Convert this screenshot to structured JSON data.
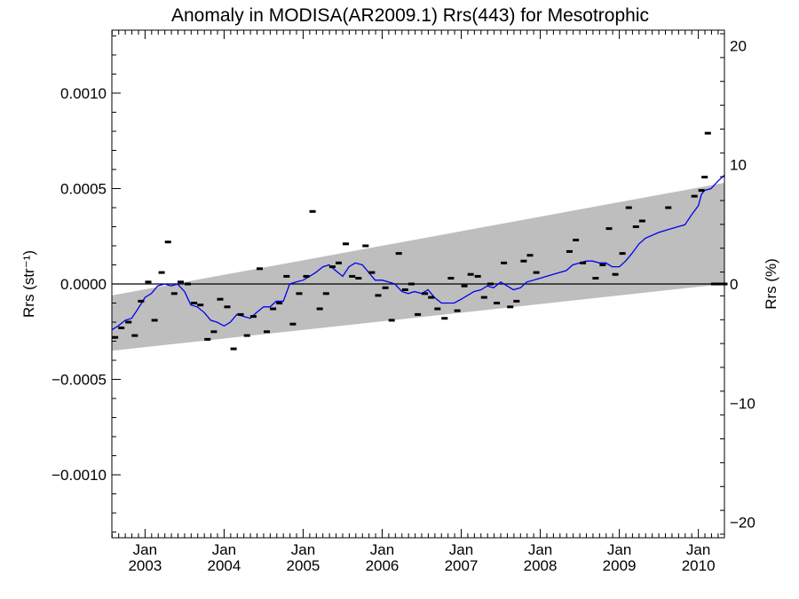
{
  "chart_data": {
    "type": "line",
    "title": "Anomaly in MODISA(AR2009.1) Rrs(443) for Mesotrophic",
    "ylabel_left": "Rrs (str⁻¹)",
    "ylabel_right": "Rrs (%)",
    "xlim": [
      2002.58,
      2010.33
    ],
    "ylim_left": [
      -0.00133,
      0.00133
    ],
    "ylim_right": [
      -21.3,
      21.3
    ],
    "yticks_left": [
      {
        "value": 0.001,
        "label": "0.0010"
      },
      {
        "value": 0.0005,
        "label": "0.0005"
      },
      {
        "value": 0.0,
        "label": "0.0000"
      },
      {
        "value": -0.0005,
        "label": "−0.0005"
      },
      {
        "value": -0.001,
        "label": "−0.0010"
      }
    ],
    "yticks_right": [
      {
        "value": 20,
        "label": "20"
      },
      {
        "value": 10,
        "label": "10"
      },
      {
        "value": 0,
        "label": "0"
      },
      {
        "value": -10,
        "label": "−10"
      },
      {
        "value": -20,
        "label": "−20"
      }
    ],
    "xticks": [
      {
        "value": 2003.0,
        "month": "Jan",
        "year": "2003"
      },
      {
        "value": 2004.0,
        "month": "Jan",
        "year": "2004"
      },
      {
        "value": 2005.0,
        "month": "Jan",
        "year": "2005"
      },
      {
        "value": 2006.0,
        "month": "Jan",
        "year": "2006"
      },
      {
        "value": 2007.0,
        "month": "Jan",
        "year": "2007"
      },
      {
        "value": 2008.0,
        "month": "Jan",
        "year": "2008"
      },
      {
        "value": 2009.0,
        "month": "Jan",
        "year": "2009"
      },
      {
        "value": 2010.0,
        "month": "Jan",
        "year": "2010"
      }
    ],
    "zero_line": 0,
    "band": {
      "color": "#bebebe",
      "x": [
        2002.58,
        2010.33
      ],
      "lower": [
        -0.00035,
        0.0
      ],
      "upper": [
        -6e-05,
        0.00053
      ]
    },
    "series": [
      {
        "role": "monthly anomaly",
        "style": "markers",
        "color": "#000000",
        "x": [
          2002.62,
          2002.7,
          2002.79,
          2002.87,
          2002.95,
          2003.04,
          2003.12,
          2003.21,
          2003.29,
          2003.37,
          2003.45,
          2003.54,
          2003.62,
          2003.7,
          2003.79,
          2003.87,
          2003.95,
          2004.04,
          2004.12,
          2004.21,
          2004.29,
          2004.37,
          2004.45,
          2004.54,
          2004.62,
          2004.7,
          2004.79,
          2004.87,
          2004.95,
          2005.04,
          2005.12,
          2005.21,
          2005.29,
          2005.37,
          2005.45,
          2005.54,
          2005.62,
          2005.7,
          2005.79,
          2005.87,
          2005.95,
          2006.04,
          2006.12,
          2006.21,
          2006.29,
          2006.37,
          2006.45,
          2006.54,
          2006.62,
          2006.7,
          2006.79,
          2006.87,
          2006.95,
          2007.04,
          2007.12,
          2007.21,
          2007.29,
          2007.37,
          2007.45,
          2007.54,
          2007.62,
          2007.7,
          2007.79,
          2007.87,
          2007.95,
          2008.37,
          2008.45,
          2008.54,
          2008.7,
          2008.79,
          2008.87,
          2008.95,
          2009.04,
          2009.12,
          2009.21,
          2009.29,
          2009.62,
          2009.95,
          2010.04,
          2010.08,
          2010.12,
          2010.2,
          2010.25,
          2010.33
        ],
        "y": [
          -0.00028,
          -0.00023,
          -0.0002,
          -0.00027,
          -9e-05,
          1e-05,
          -0.00019,
          6e-05,
          0.00022,
          -5e-05,
          1e-05,
          0.0,
          -0.0001,
          -0.00011,
          -0.00029,
          -0.00025,
          -8e-05,
          -0.00012,
          -0.00034,
          -0.00016,
          -0.00027,
          -0.00017,
          8e-05,
          -0.00025,
          -0.00013,
          -0.0001,
          4e-05,
          -0.00021,
          -5e-05,
          4e-05,
          0.00038,
          -0.00013,
          -5e-05,
          9e-05,
          0.00011,
          0.00021,
          4e-05,
          3e-05,
          0.0002,
          6e-05,
          -6e-05,
          -2e-05,
          -0.00019,
          0.00016,
          -3e-05,
          0.0,
          -0.00016,
          -5e-05,
          -7e-05,
          -0.00013,
          -0.00018,
          3e-05,
          -0.00014,
          -1e-05,
          5e-05,
          4e-05,
          -7e-05,
          0.0,
          -0.0001,
          0.00011,
          -0.00012,
          -9e-05,
          0.00012,
          0.00015,
          6e-05,
          0.00017,
          0.00023,
          0.00011,
          3e-05,
          0.0001,
          0.00029,
          5e-05,
          0.00016,
          0.0004,
          0.0003,
          0.00033,
          0.0004,
          0.00046,
          0.00049,
          0.00056,
          0.00079,
          0.0,
          0.0,
          0.0
        ]
      },
      {
        "role": "running mean",
        "style": "line",
        "color": "#0000ee",
        "x": [
          2002.58,
          2002.66,
          2002.75,
          2002.83,
          2002.91,
          2003.0,
          2003.08,
          2003.16,
          2003.25,
          2003.33,
          2003.41,
          2003.5,
          2003.58,
          2003.66,
          2003.75,
          2003.83,
          2003.91,
          2004.0,
          2004.08,
          2004.16,
          2004.25,
          2004.33,
          2004.41,
          2004.5,
          2004.58,
          2004.66,
          2004.75,
          2004.83,
          2004.91,
          2005.0,
          2005.08,
          2005.16,
          2005.25,
          2005.33,
          2005.41,
          2005.5,
          2005.58,
          2005.66,
          2005.75,
          2005.83,
          2005.91,
          2006.0,
          2006.08,
          2006.16,
          2006.25,
          2006.33,
          2006.41,
          2006.5,
          2006.58,
          2006.66,
          2006.75,
          2006.83,
          2006.91,
          2007.0,
          2007.08,
          2007.16,
          2007.25,
          2007.33,
          2007.41,
          2007.5,
          2007.58,
          2007.66,
          2007.75,
          2007.83,
          2008.0,
          2008.16,
          2008.33,
          2008.41,
          2008.5,
          2008.58,
          2008.66,
          2008.75,
          2008.83,
          2008.91,
          2009.0,
          2009.08,
          2009.16,
          2009.25,
          2009.33,
          2009.5,
          2009.66,
          2009.83,
          2009.91,
          2010.0,
          2010.04,
          2010.08,
          2010.16,
          2010.25,
          2010.33
        ],
        "y": [
          -0.00024,
          -0.00022,
          -0.00019,
          -0.00018,
          -0.00013,
          -7e-05,
          -5e-05,
          -1e-05,
          0.0,
          -1e-05,
          0.0,
          -4e-05,
          -0.00011,
          -0.00012,
          -0.00015,
          -0.00019,
          -0.0002,
          -0.00022,
          -0.0002,
          -0.00016,
          -0.00017,
          -0.00018,
          -0.00015,
          -0.00012,
          -0.00012,
          -9e-05,
          -9e-05,
          0.0,
          1e-05,
          2e-05,
          4e-05,
          6e-05,
          9e-05,
          0.0001,
          7e-05,
          4e-05,
          9e-05,
          0.00011,
          0.0001,
          6e-05,
          2e-05,
          2e-05,
          1e-05,
          0.0,
          -4e-05,
          -5e-05,
          -4e-05,
          -5e-05,
          -3e-05,
          -7e-05,
          -0.0001,
          -0.0001,
          -0.0001,
          -8e-05,
          -6e-05,
          -4e-05,
          -3e-05,
          -1e-05,
          -2e-05,
          1e-05,
          -1e-05,
          -3e-05,
          -2e-05,
          1e-05,
          3e-05,
          5e-05,
          7e-05,
          0.0001,
          0.00011,
          0.00012,
          0.00012,
          0.00011,
          0.00011,
          9e-05,
          9e-05,
          0.00012,
          0.00016,
          0.00021,
          0.00024,
          0.00027,
          0.00029,
          0.00031,
          0.00036,
          0.00041,
          0.00047,
          0.00049,
          0.0005,
          0.00054,
          0.00057
        ]
      }
    ]
  }
}
